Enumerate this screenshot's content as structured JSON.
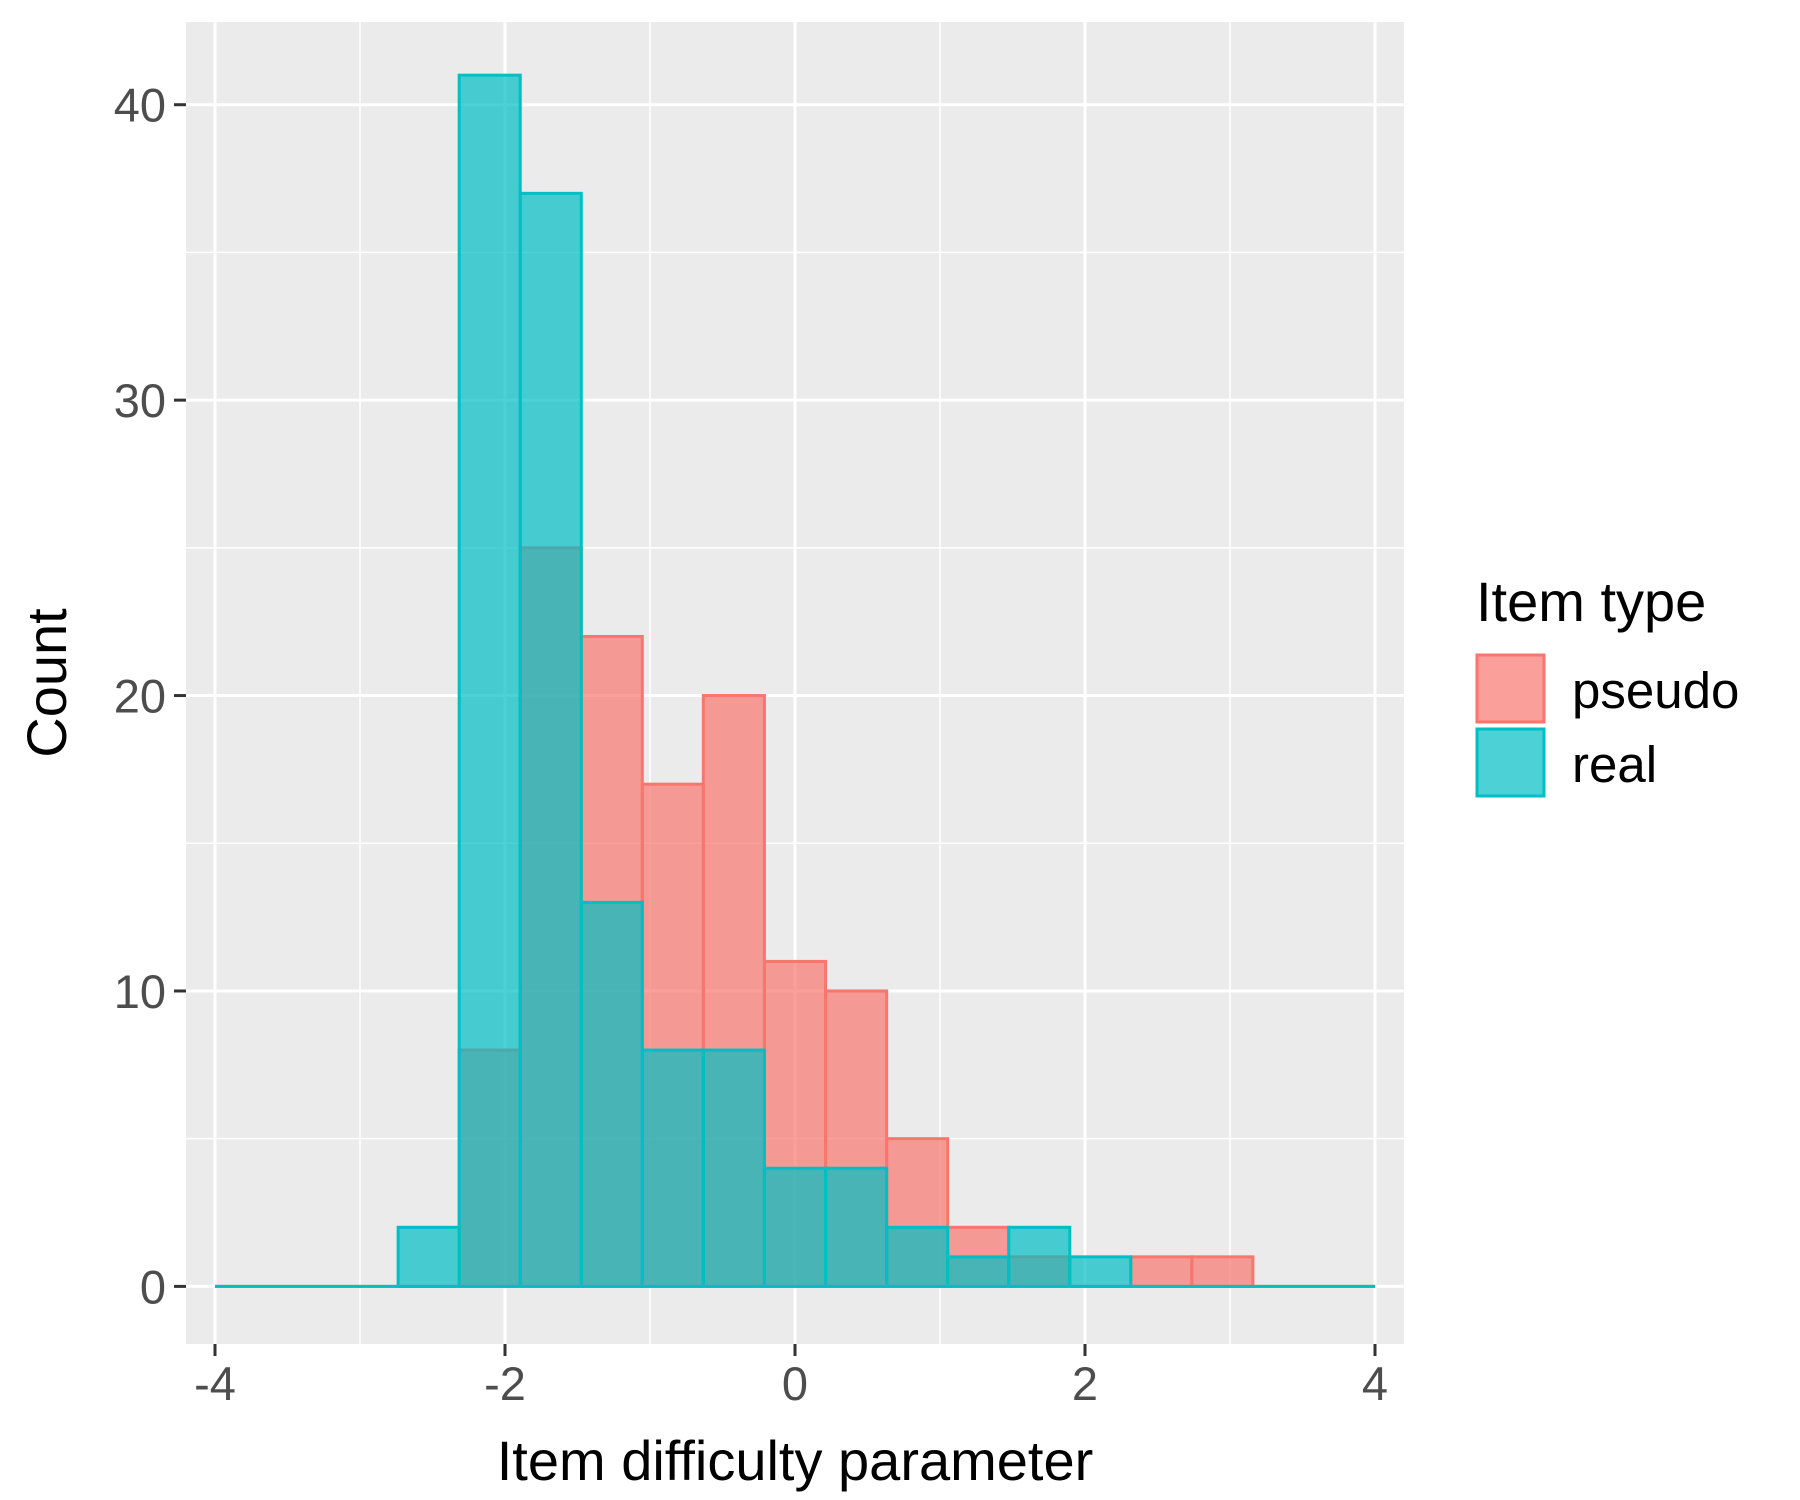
{
  "chart_data": {
    "type": "bar",
    "subtype": "overlapping-histogram",
    "title": "",
    "xlabel": "Item difficulty parameter",
    "ylabel": "Count",
    "xlim": [
      -4.2,
      4.2
    ],
    "ylim": [
      -1.95,
      42.8
    ],
    "x_ticks": [
      -4,
      -2,
      0,
      2,
      4
    ],
    "x_tick_labels": [
      "-4",
      "-2",
      "0",
      "2",
      "4"
    ],
    "y_ticks": [
      0,
      10,
      20,
      30,
      40
    ],
    "y_tick_labels": [
      "0",
      "10",
      "20",
      "30",
      "40"
    ],
    "grid": true,
    "legend": {
      "title": "Item type",
      "placement": "right"
    },
    "bin_edges": [
      -4.0,
      -3.579,
      -3.158,
      -2.737,
      -2.316,
      -1.895,
      -1.474,
      -1.053,
      -0.632,
      -0.211,
      0.211,
      0.632,
      1.053,
      1.474,
      1.895,
      2.316,
      2.737,
      3.158,
      3.579,
      4.0
    ],
    "series": [
      {
        "name": "pseudo",
        "color": "#F8766D",
        "values": [
          0,
          0,
          0,
          0,
          8,
          25,
          22,
          17,
          20,
          11,
          10,
          5,
          2,
          1,
          0,
          1,
          1,
          0,
          0
        ]
      },
      {
        "name": "real",
        "color": "#00BFC4",
        "values": [
          0,
          0,
          0,
          2,
          41,
          37,
          13,
          8,
          8,
          4,
          4,
          2,
          1,
          2,
          1,
          0,
          0,
          0,
          0
        ]
      }
    ]
  }
}
